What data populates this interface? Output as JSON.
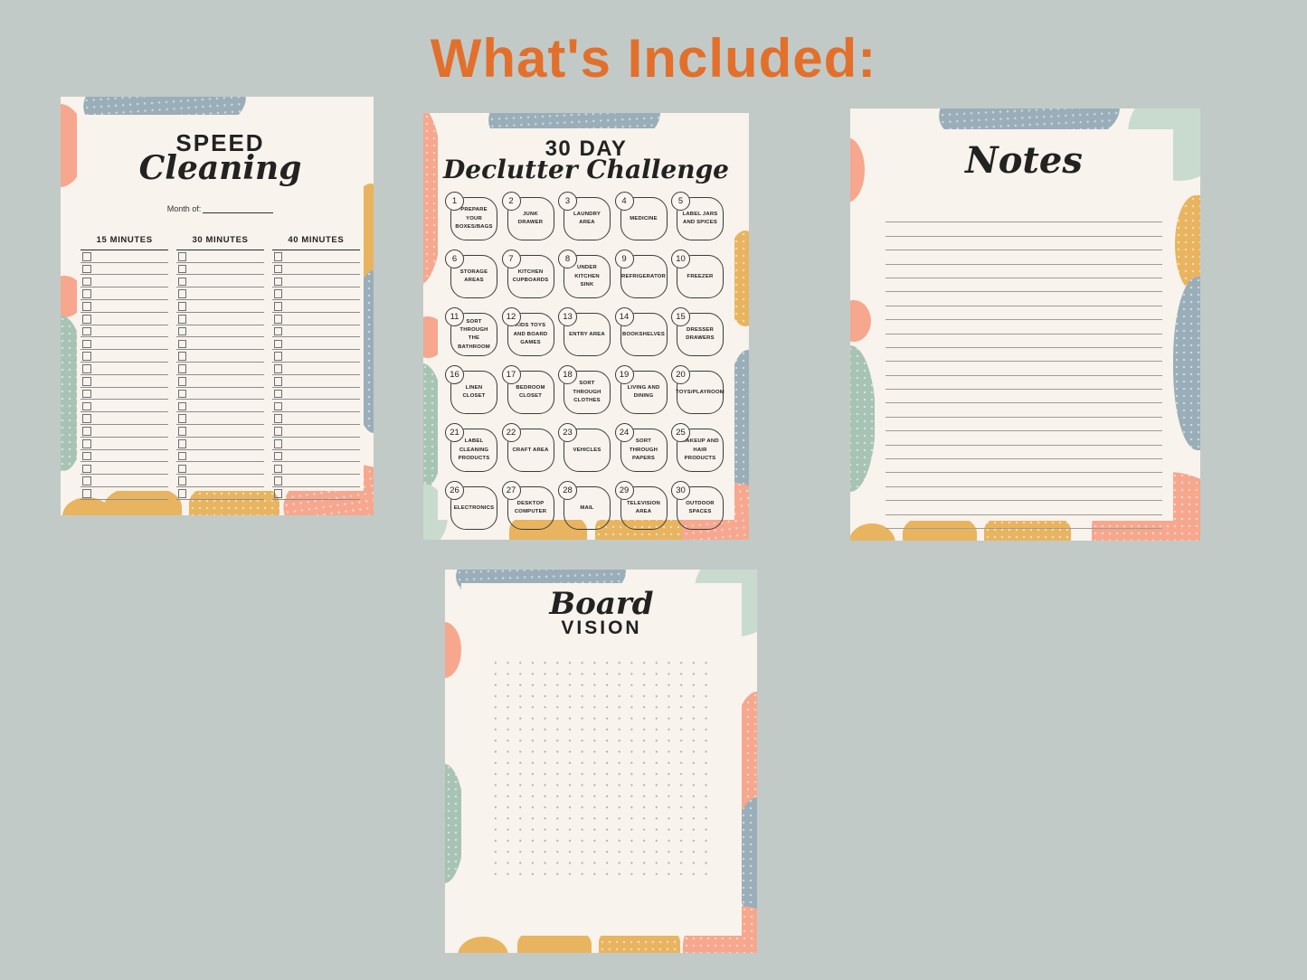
{
  "page": {
    "title": "What's Included:",
    "title_color": "#e2702b",
    "background_color": "#c2cac8"
  },
  "palette": {
    "card_cream": "#f8f3ec",
    "leaf_blue_gray": "#9aaeb9",
    "leaf_salmon": "#f6a78e",
    "leaf_mustard": "#e9b45f",
    "leaf_mint": "#c9dbce",
    "leaf_sage": "#a7c3b4",
    "ink": "#222222"
  },
  "cards": {
    "speed_cleaning": {
      "title": "SPEED",
      "title_script": "Cleaning",
      "month_label": "Month of:",
      "columns": [
        "15 MINUTES",
        "30 MINUTES",
        "40 MINUTES"
      ],
      "rows_per_column": 20
    },
    "declutter": {
      "title": "30 DAY",
      "title_script": "Declutter Challenge",
      "tasks": [
        {
          "num": "1",
          "label": "PREPARE YOUR BOXES/BAGS"
        },
        {
          "num": "2",
          "label": "JUNK DRAWER"
        },
        {
          "num": "3",
          "label": "LAUNDRY AREA"
        },
        {
          "num": "4",
          "label": "MEDICINE"
        },
        {
          "num": "5",
          "label": "LABEL JARS AND SPICES"
        },
        {
          "num": "6",
          "label": "STORAGE AREAS"
        },
        {
          "num": "7",
          "label": "KITCHEN CUPBOARDS"
        },
        {
          "num": "8",
          "label": "UNDER KITCHEN SINK"
        },
        {
          "num": "9",
          "label": "REFRIGERATOR"
        },
        {
          "num": "10",
          "label": "FREEZER"
        },
        {
          "num": "11",
          "label": "SORT THROUGH THE BATHROOM"
        },
        {
          "num": "12",
          "label": "KIDS TOYS AND BOARD GAMES"
        },
        {
          "num": "13",
          "label": "ENTRY AREA"
        },
        {
          "num": "14",
          "label": "BOOKSHELVES"
        },
        {
          "num": "15",
          "label": "DRESSER DRAWERS"
        },
        {
          "num": "16",
          "label": "LINEN CLOSET"
        },
        {
          "num": "17",
          "label": "BEDROOM CLOSET"
        },
        {
          "num": "18",
          "label": "SORT THROUGH CLOTHES"
        },
        {
          "num": "19",
          "label": "LIVING AND DINING"
        },
        {
          "num": "20",
          "label": "TOYS/PLAYROOM"
        },
        {
          "num": "21",
          "label": "LABEL CLEANING PRODUCTS"
        },
        {
          "num": "22",
          "label": "CRAFT AREA"
        },
        {
          "num": "23",
          "label": "VEHICLES"
        },
        {
          "num": "24",
          "label": "SORT THROUGH PAPERS"
        },
        {
          "num": "25",
          "label": "MAKEUP AND HAIR PRODUCTS"
        },
        {
          "num": "26",
          "label": "ELECTRONICS"
        },
        {
          "num": "27",
          "label": "DESKTOP COMPUTER"
        },
        {
          "num": "28",
          "label": "MAIL"
        },
        {
          "num": "29",
          "label": "TELEVISION AREA"
        },
        {
          "num": "30",
          "label": "OUTDOOR SPACES"
        }
      ]
    },
    "notes": {
      "title_script": "Notes",
      "line_count": 23
    },
    "vision_board": {
      "title_script": "Board",
      "title": "VISION"
    }
  }
}
